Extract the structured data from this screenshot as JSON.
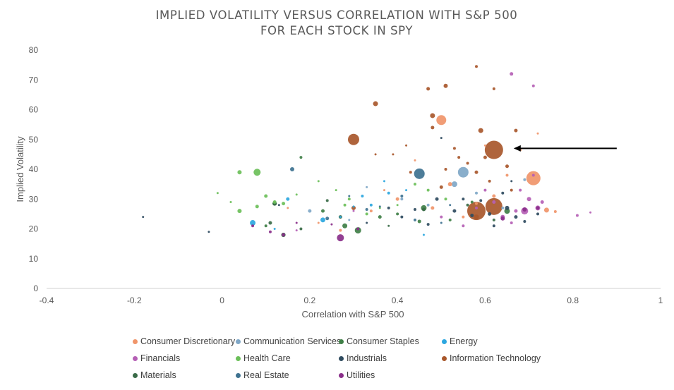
{
  "chart_data": {
    "type": "scatter",
    "title": [
      "IMPLIED VOLATILITY VERSUS CORRELATION WITH S&P 500",
      "FOR EACH STOCK IN SPY"
    ],
    "xlabel": "Correlation with S&P 500",
    "ylabel": "Implied Volatility",
    "xlim": [
      -0.4,
      1.0
    ],
    "ylim": [
      0,
      80
    ],
    "xticks": [
      -0.4,
      -0.2,
      0,
      0.2,
      0.4,
      0.6,
      0.8,
      1
    ],
    "xtick_labels": [
      "-0.4",
      "-0.2",
      "0",
      "0.2",
      "0.4",
      "0.6",
      "0.8",
      "1"
    ],
    "yticks": [
      0,
      10,
      20,
      30,
      40,
      50,
      60,
      70,
      80
    ],
    "ytick_labels": [
      "0",
      "10",
      "20",
      "30",
      "40",
      "50",
      "60",
      "70",
      "80"
    ],
    "legend_position": "bottom",
    "annotation": {
      "type": "arrow",
      "from": [
        0.9,
        47
      ],
      "to": [
        0.665,
        47
      ],
      "note": "points to largest Information Technology bubble"
    },
    "series": [
      {
        "name": "Consumer Discretionary",
        "color": "#F0956A",
        "points": [
          {
            "x": 0.5,
            "y": 56.5,
            "size": 14
          },
          {
            "x": 0.71,
            "y": 37.0,
            "size": 20
          },
          {
            "x": 0.74,
            "y": 26.3,
            "size": 7
          },
          {
            "x": 0.52,
            "y": 35.0,
            "size": 6
          },
          {
            "x": 0.4,
            "y": 30.0,
            "size": 5
          },
          {
            "x": 0.48,
            "y": 27.0,
            "size": 5
          },
          {
            "x": 0.62,
            "y": 31.0,
            "size": 5
          },
          {
            "x": 0.68,
            "y": 46.5,
            "size": 4
          },
          {
            "x": 0.55,
            "y": 24.0,
            "size": 4
          },
          {
            "x": 0.34,
            "y": 26.0,
            "size": 4
          },
          {
            "x": 0.27,
            "y": 19.5,
            "size": 4
          },
          {
            "x": 0.65,
            "y": 38.0,
            "size": 4
          },
          {
            "x": 0.44,
            "y": 43.0,
            "size": 3
          },
          {
            "x": 0.58,
            "y": 28.5,
            "size": 4
          },
          {
            "x": 0.22,
            "y": 22.0,
            "size": 3
          },
          {
            "x": 0.72,
            "y": 52.0,
            "size": 3
          },
          {
            "x": 0.6,
            "y": 48.0,
            "size": 3
          },
          {
            "x": 0.37,
            "y": 33.0,
            "size": 3
          },
          {
            "x": 0.15,
            "y": 27.0,
            "size": 3
          },
          {
            "x": 0.76,
            "y": 25.8,
            "size": 4
          }
        ]
      },
      {
        "name": "Communication Services",
        "color": "#7FA7C7",
        "points": [
          {
            "x": 0.55,
            "y": 39.0,
            "size": 15
          },
          {
            "x": 0.53,
            "y": 35.0,
            "size": 8
          },
          {
            "x": 0.2,
            "y": 26.0,
            "size": 5
          },
          {
            "x": 0.41,
            "y": 30.0,
            "size": 4
          },
          {
            "x": 0.47,
            "y": 28.0,
            "size": 4
          },
          {
            "x": 0.58,
            "y": 32.0,
            "size": 4
          },
          {
            "x": 0.33,
            "y": 34.0,
            "size": 3
          },
          {
            "x": 0.64,
            "y": 27.0,
            "size": 4
          },
          {
            "x": 0.29,
            "y": 23.0,
            "size": 3
          },
          {
            "x": 0.69,
            "y": 36.5,
            "size": 4
          }
        ]
      },
      {
        "name": "Consumer Staples",
        "color": "#3F7F47",
        "points": [
          {
            "x": 0.31,
            "y": 19.5,
            "size": 9
          },
          {
            "x": 0.46,
            "y": 27.0,
            "size": 8
          },
          {
            "x": 0.65,
            "y": 26.0,
            "size": 8
          },
          {
            "x": 0.28,
            "y": 21.0,
            "size": 7
          },
          {
            "x": 0.14,
            "y": 18.0,
            "size": 6
          },
          {
            "x": 0.12,
            "y": 28.5,
            "size": 6
          },
          {
            "x": 0.45,
            "y": 22.5,
            "size": 5
          },
          {
            "x": 0.36,
            "y": 24.0,
            "size": 5
          },
          {
            "x": 0.23,
            "y": 26.0,
            "size": 5
          },
          {
            "x": 0.18,
            "y": 44.0,
            "size": 4
          },
          {
            "x": 0.52,
            "y": 23.0,
            "size": 4
          },
          {
            "x": 0.4,
            "y": 25.0,
            "size": 4
          },
          {
            "x": 0.1,
            "y": 21.0,
            "size": 4
          },
          {
            "x": 0.57,
            "y": 29.0,
            "size": 4
          }
        ]
      },
      {
        "name": "Energy",
        "color": "#2CA7E0",
        "points": [
          {
            "x": 0.07,
            "y": 22.0,
            "size": 8
          },
          {
            "x": 0.23,
            "y": 23.0,
            "size": 7
          },
          {
            "x": 0.15,
            "y": 30.0,
            "size": 5
          },
          {
            "x": 0.32,
            "y": 31.0,
            "size": 4
          },
          {
            "x": 0.38,
            "y": 32.0,
            "size": 4
          },
          {
            "x": 0.34,
            "y": 28.0,
            "size": 4
          },
          {
            "x": 0.42,
            "y": 33.0,
            "size": 3
          },
          {
            "x": 0.3,
            "y": 27.5,
            "size": 3
          },
          {
            "x": 0.27,
            "y": 24.0,
            "size": 3
          },
          {
            "x": 0.46,
            "y": 18.0,
            "size": 3
          },
          {
            "x": 0.37,
            "y": 36.0,
            "size": 3
          },
          {
            "x": 0.12,
            "y": 20.0,
            "size": 3
          }
        ]
      },
      {
        "name": "Financials",
        "color": "#B55FB5",
        "points": [
          {
            "x": 0.69,
            "y": 26.0,
            "size": 10
          },
          {
            "x": 0.72,
            "y": 27.0,
            "size": 7
          },
          {
            "x": 0.64,
            "y": 24.0,
            "size": 6
          },
          {
            "x": 0.7,
            "y": 30.0,
            "size": 6
          },
          {
            "x": 0.66,
            "y": 72.0,
            "size": 5
          },
          {
            "x": 0.67,
            "y": 26.0,
            "size": 5
          },
          {
            "x": 0.62,
            "y": 29.0,
            "size": 5
          },
          {
            "x": 0.73,
            "y": 29.0,
            "size": 5
          },
          {
            "x": 0.71,
            "y": 38.0,
            "size": 4
          },
          {
            "x": 0.6,
            "y": 33.0,
            "size": 4
          },
          {
            "x": 0.58,
            "y": 27.0,
            "size": 4
          },
          {
            "x": 0.68,
            "y": 33.0,
            "size": 4
          },
          {
            "x": 0.81,
            "y": 24.5,
            "size": 4
          },
          {
            "x": 0.84,
            "y": 25.5,
            "size": 3
          },
          {
            "x": 0.55,
            "y": 21.0,
            "size": 4
          },
          {
            "x": 0.5,
            "y": 24.0,
            "size": 4
          },
          {
            "x": 0.66,
            "y": 22.0,
            "size": 4
          },
          {
            "x": 0.71,
            "y": 68.0,
            "size": 4
          },
          {
            "x": 0.3,
            "y": 26.0,
            "size": 3
          },
          {
            "x": 0.17,
            "y": 19.5,
            "size": 3
          }
        ]
      },
      {
        "name": "Health Care",
        "color": "#6BBF59",
        "points": [
          {
            "x": 0.08,
            "y": 39.0,
            "size": 10
          },
          {
            "x": 0.04,
            "y": 39.0,
            "size": 6
          },
          {
            "x": 0.04,
            "y": 26.0,
            "size": 6
          },
          {
            "x": 0.08,
            "y": 27.5,
            "size": 5
          },
          {
            "x": 0.12,
            "y": 29.0,
            "size": 5
          },
          {
            "x": 0.1,
            "y": 31.0,
            "size": 5
          },
          {
            "x": 0.14,
            "y": 28.5,
            "size": 5
          },
          {
            "x": 0.28,
            "y": 28.0,
            "size": 4
          },
          {
            "x": 0.33,
            "y": 25.0,
            "size": 4
          },
          {
            "x": 0.44,
            "y": 35.0,
            "size": 4
          },
          {
            "x": 0.47,
            "y": 33.0,
            "size": 4
          },
          {
            "x": 0.29,
            "y": 30.0,
            "size": 4
          },
          {
            "x": 0.4,
            "y": 28.0,
            "size": 3
          },
          {
            "x": 0.22,
            "y": 36.0,
            "size": 3
          },
          {
            "x": 0.51,
            "y": 30.0,
            "size": 4
          },
          {
            "x": 0.36,
            "y": 27.0,
            "size": 3
          },
          {
            "x": 0.26,
            "y": 33.0,
            "size": 3
          },
          {
            "x": 0.17,
            "y": 31.5,
            "size": 3
          },
          {
            "x": -0.01,
            "y": 32.0,
            "size": 3
          },
          {
            "x": 0.02,
            "y": 29.0,
            "size": 3
          }
        ]
      },
      {
        "name": "Industrials",
        "color": "#2F4B5F",
        "points": [
          {
            "x": 0.65,
            "y": 27.0,
            "size": 6
          },
          {
            "x": 0.61,
            "y": 25.0,
            "size": 5
          },
          {
            "x": 0.67,
            "y": 24.0,
            "size": 5
          },
          {
            "x": 0.57,
            "y": 24.5,
            "size": 5
          },
          {
            "x": 0.53,
            "y": 26.0,
            "size": 5
          },
          {
            "x": 0.49,
            "y": 30.0,
            "size": 5
          },
          {
            "x": 0.62,
            "y": 21.0,
            "size": 4
          },
          {
            "x": 0.69,
            "y": 22.5,
            "size": 4
          },
          {
            "x": 0.72,
            "y": 25.0,
            "size": 4
          },
          {
            "x": 0.44,
            "y": 26.5,
            "size": 4
          },
          {
            "x": 0.41,
            "y": 24.0,
            "size": 4
          },
          {
            "x": 0.38,
            "y": 27.0,
            "size": 4
          },
          {
            "x": 0.59,
            "y": 29.5,
            "size": 4
          },
          {
            "x": 0.64,
            "y": 32.0,
            "size": 4
          },
          {
            "x": 0.55,
            "y": 30.0,
            "size": 4
          },
          {
            "x": 0.47,
            "y": 21.5,
            "size": 4
          },
          {
            "x": 0.33,
            "y": 22.0,
            "size": 3
          },
          {
            "x": 0.66,
            "y": 36.0,
            "size": 3
          },
          {
            "x": 0.5,
            "y": 50.5,
            "size": 3
          },
          {
            "x": 0.13,
            "y": 28.0,
            "size": 3
          },
          {
            "x": -0.18,
            "y": 24.0,
            "size": 3
          },
          {
            "x": -0.03,
            "y": 19.0,
            "size": 3
          }
        ]
      },
      {
        "name": "Information Technology",
        "color": "#A8572B",
        "points": [
          {
            "x": 0.62,
            "y": 46.5,
            "size": 26
          },
          {
            "x": 0.62,
            "y": 27.5,
            "size": 24
          },
          {
            "x": 0.58,
            "y": 26.0,
            "size": 26
          },
          {
            "x": 0.3,
            "y": 50.0,
            "size": 16
          },
          {
            "x": 0.58,
            "y": 24.0,
            "size": 7
          },
          {
            "x": 0.59,
            "y": 53.0,
            "size": 7
          },
          {
            "x": 0.35,
            "y": 62.0,
            "size": 7
          },
          {
            "x": 0.48,
            "y": 58.0,
            "size": 7
          },
          {
            "x": 0.51,
            "y": 68.0,
            "size": 6
          },
          {
            "x": 0.3,
            "y": 27.0,
            "size": 6
          },
          {
            "x": 0.47,
            "y": 67.0,
            "size": 5
          },
          {
            "x": 0.48,
            "y": 54.0,
            "size": 5
          },
          {
            "x": 0.5,
            "y": 34.0,
            "size": 5
          },
          {
            "x": 0.67,
            "y": 53.0,
            "size": 5
          },
          {
            "x": 0.65,
            "y": 41.0,
            "size": 5
          },
          {
            "x": 0.58,
            "y": 39.0,
            "size": 5
          },
          {
            "x": 0.6,
            "y": 44.0,
            "size": 5
          },
          {
            "x": 0.51,
            "y": 40.0,
            "size": 4
          },
          {
            "x": 0.56,
            "y": 42.0,
            "size": 4
          },
          {
            "x": 0.66,
            "y": 33.0,
            "size": 4
          },
          {
            "x": 0.43,
            "y": 39.0,
            "size": 4
          },
          {
            "x": 0.54,
            "y": 44.0,
            "size": 4
          },
          {
            "x": 0.61,
            "y": 36.0,
            "size": 4
          },
          {
            "x": 0.53,
            "y": 47.0,
            "size": 4
          },
          {
            "x": 0.62,
            "y": 67.0,
            "size": 4
          },
          {
            "x": 0.35,
            "y": 45.0,
            "size": 3
          },
          {
            "x": 0.42,
            "y": 48.0,
            "size": 3
          },
          {
            "x": 0.39,
            "y": 45.0,
            "size": 3
          },
          {
            "x": 0.58,
            "y": 74.5,
            "size": 4
          }
        ]
      },
      {
        "name": "Materials",
        "color": "#3A6B48",
        "points": [
          {
            "x": 0.12,
            "y": 28.5,
            "size": 6
          },
          {
            "x": 0.14,
            "y": 18.0,
            "size": 6
          },
          {
            "x": 0.11,
            "y": 22.0,
            "size": 5
          },
          {
            "x": 0.46,
            "y": 26.5,
            "size": 5
          },
          {
            "x": 0.27,
            "y": 24.0,
            "size": 5
          },
          {
            "x": 0.24,
            "y": 29.5,
            "size": 4
          },
          {
            "x": 0.56,
            "y": 28.0,
            "size": 4
          },
          {
            "x": 0.62,
            "y": 23.0,
            "size": 4
          },
          {
            "x": 0.18,
            "y": 20.0,
            "size": 4
          },
          {
            "x": 0.38,
            "y": 21.0,
            "size": 3
          }
        ]
      },
      {
        "name": "Real Estate",
        "color": "#3E7290",
        "points": [
          {
            "x": 0.45,
            "y": 38.5,
            "size": 15
          },
          {
            "x": 0.16,
            "y": 40.0,
            "size": 6
          },
          {
            "x": 0.24,
            "y": 23.5,
            "size": 5
          },
          {
            "x": 0.33,
            "y": 26.5,
            "size": 4
          },
          {
            "x": 0.44,
            "y": 23.0,
            "size": 4
          },
          {
            "x": 0.41,
            "y": 31.0,
            "size": 4
          },
          {
            "x": 0.36,
            "y": 27.5,
            "size": 3
          },
          {
            "x": 0.52,
            "y": 28.0,
            "size": 3
          },
          {
            "x": 0.5,
            "y": 22.0,
            "size": 3
          },
          {
            "x": 0.29,
            "y": 31.0,
            "size": 3
          }
        ]
      },
      {
        "name": "Utilities",
        "color": "#8A2F8A",
        "points": [
          {
            "x": 0.27,
            "y": 17.0,
            "size": 10
          },
          {
            "x": 0.69,
            "y": 26.5,
            "size": 6
          },
          {
            "x": 0.64,
            "y": 23.5,
            "size": 6
          },
          {
            "x": 0.72,
            "y": 27.0,
            "size": 5
          },
          {
            "x": 0.14,
            "y": 18.0,
            "size": 5
          },
          {
            "x": 0.11,
            "y": 19.0,
            "size": 4
          },
          {
            "x": 0.31,
            "y": 20.0,
            "size": 4
          },
          {
            "x": 0.07,
            "y": 21.0,
            "size": 4
          },
          {
            "x": 0.17,
            "y": 22.0,
            "size": 3
          },
          {
            "x": 0.25,
            "y": 21.5,
            "size": 3
          }
        ]
      }
    ]
  }
}
